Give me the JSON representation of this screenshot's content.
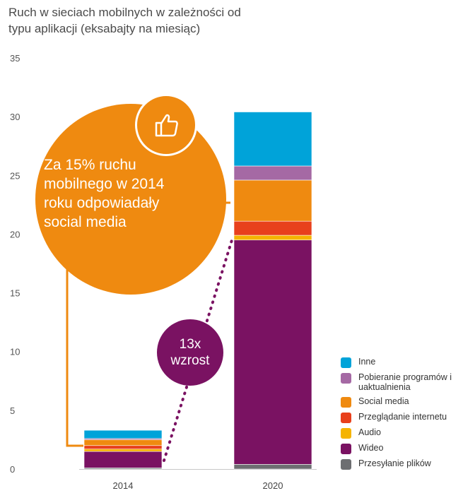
{
  "title_lines": [
    "Ruch w sieciach mobilnych w zależności od",
    "typu aplikacji (eksabajty na miesiąc)"
  ],
  "callout": {
    "lines": [
      "Za 15% ruchu",
      "mobilnego w 2014",
      "roku odpowiadały",
      "social media"
    ],
    "icon": "thumbs-up-icon",
    "color": "#ef8a10"
  },
  "growth_badge": {
    "lines": [
      "13x",
      "wzrost"
    ],
    "color": "#7a1262"
  },
  "chart_data": {
    "type": "bar",
    "stacked": true,
    "categories": [
      "2014",
      "2020"
    ],
    "ylim": [
      0,
      35
    ],
    "yticks": [
      0,
      5,
      10,
      15,
      20,
      25,
      30,
      35
    ],
    "grid": false,
    "legend_position": "bottom-right",
    "series": [
      {
        "name": "Przesyłanie plików",
        "color": "#6d6e71",
        "values": [
          0.1,
          0.4
        ]
      },
      {
        "name": "Wideo",
        "color": "#7a1262",
        "values": [
          1.4,
          19.1
        ]
      },
      {
        "name": "Audio",
        "color": "#f5b400",
        "values": [
          0.2,
          0.4
        ]
      },
      {
        "name": "Przeglądanie internetu",
        "color": "#e8401c",
        "values": [
          0.3,
          1.2
        ]
      },
      {
        "name": "Social media",
        "color": "#ef8a10",
        "values": [
          0.5,
          3.5
        ]
      },
      {
        "name": "Pobieranie programów i uaktualnienia",
        "color": "#a569a4",
        "values": [
          0.1,
          1.2
        ]
      },
      {
        "name": "Inne",
        "color": "#00a3d9",
        "values": [
          0.7,
          4.6
        ]
      }
    ],
    "legend_order": [
      "Inne",
      "Pobieranie programów i uaktualnienia",
      "Social media",
      "Przeglądanie internetu",
      "Audio",
      "Wideo",
      "Przesyłanie plików"
    ]
  }
}
